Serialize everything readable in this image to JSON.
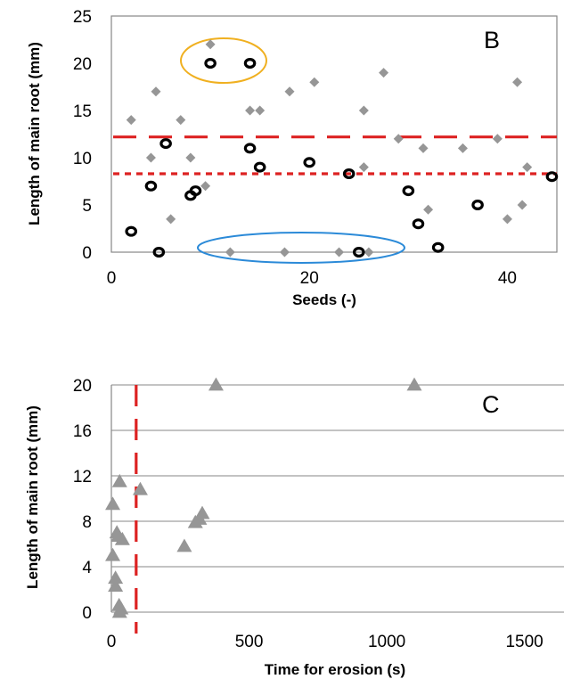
{
  "chart_data": [
    {
      "type": "scatter",
      "panel_label": "B",
      "xlabel": "Seeds (-)",
      "ylabel": "Length of main root (mm)",
      "xlim": [
        0,
        45
      ],
      "ylim": [
        0,
        25
      ],
      "x_ticks": [
        "0",
        "20",
        "40"
      ],
      "y_ticks": [
        "0",
        "5",
        "10",
        "15",
        "20",
        "25"
      ],
      "grid": false,
      "series": [
        {
          "marker": "diamond",
          "color": "#969696",
          "points": [
            [
              2,
              14
            ],
            [
              4,
              10
            ],
            [
              4.5,
              17
            ],
            [
              6,
              3.5
            ],
            [
              7,
              14
            ],
            [
              8,
              10
            ],
            [
              9.5,
              7
            ],
            [
              10,
              22
            ],
            [
              12,
              0
            ],
            [
              14,
              15
            ],
            [
              15,
              15
            ],
            [
              17.5,
              0
            ],
            [
              18,
              17
            ],
            [
              20.5,
              18
            ],
            [
              23,
              0
            ],
            [
              25.5,
              15
            ],
            [
              25.5,
              9
            ],
            [
              26,
              0
            ],
            [
              27.5,
              19
            ],
            [
              29,
              12
            ],
            [
              31.5,
              11
            ],
            [
              32,
              4.5
            ],
            [
              35.5,
              11
            ],
            [
              39,
              12
            ],
            [
              40,
              3.5
            ],
            [
              41,
              18
            ],
            [
              41.5,
              5
            ],
            [
              42,
              9
            ]
          ]
        },
        {
          "marker": "open-circle",
          "color": "#000000",
          "points": [
            [
              2,
              2.2
            ],
            [
              4,
              7
            ],
            [
              4.8,
              0
            ],
            [
              5.5,
              11.5
            ],
            [
              8,
              6
            ],
            [
              8.5,
              6.5
            ],
            [
              10,
              20
            ],
            [
              14,
              20
            ],
            [
              14,
              11
            ],
            [
              15,
              9
            ],
            [
              20,
              9.5
            ],
            [
              24,
              8.3
            ],
            [
              25,
              0
            ],
            [
              30,
              6.5
            ],
            [
              31,
              3
            ],
            [
              33,
              0.5
            ],
            [
              37,
              5
            ],
            [
              44.5,
              8
            ]
          ]
        }
      ],
      "reference_lines": [
        {
          "y": 12.2,
          "style": "long-dash",
          "color": "#dd2222"
        },
        {
          "y": 8.3,
          "style": "short-dash",
          "color": "#dd2222"
        }
      ],
      "highlights": [
        {
          "color": "#f0b020",
          "around": "open circles at y = 20"
        },
        {
          "color": "#2b8ad8",
          "around": "diamonds at y = 0"
        }
      ]
    },
    {
      "type": "scatter",
      "panel_label": "C",
      "xlabel": "Time for erosion (s)",
      "ylabel": "Length of main root (mm)",
      "xlim": [
        0,
        1650
      ],
      "ylim": [
        0,
        20
      ],
      "x_ticks": [
        "0",
        "500",
        "1000",
        "1500"
      ],
      "y_ticks": [
        "0",
        "4",
        "8",
        "12",
        "16",
        "20"
      ],
      "grid": true,
      "series": [
        {
          "marker": "triangle",
          "color": "#969696",
          "points": [
            [
              380,
              20
            ],
            [
              1100,
              20
            ],
            [
              30,
              11.5
            ],
            [
              105,
              10.8
            ],
            [
              5,
              9.5
            ],
            [
              330,
              8.7
            ],
            [
              320,
              8.2
            ],
            [
              305,
              7.9
            ],
            [
              20,
              7
            ],
            [
              25,
              6.7
            ],
            [
              40,
              6.4
            ],
            [
              265,
              5.8
            ],
            [
              5,
              5
            ],
            [
              15,
              3
            ],
            [
              15,
              2.3
            ],
            [
              28,
              0.6
            ],
            [
              35,
              0.3
            ],
            [
              30,
              0
            ]
          ]
        }
      ],
      "reference_lines": [
        {
          "x": 90,
          "style": "long-dash",
          "color": "#dd2222"
        }
      ]
    }
  ]
}
